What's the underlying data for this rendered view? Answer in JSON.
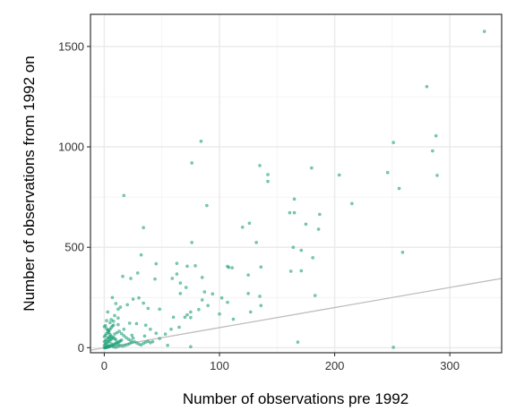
{
  "chart_data": {
    "type": "scatter",
    "xlabel": "Number of observations pre 1992",
    "ylabel": "Number of observations from 1992 on",
    "xlim": [
      -12,
      345
    ],
    "ylim": [
      -25,
      1660
    ],
    "x_ticks": [
      0,
      100,
      200,
      300
    ],
    "y_ticks": [
      0,
      500,
      1000,
      1500
    ],
    "x_minor": [
      50,
      150,
      250
    ],
    "y_minor": [
      250,
      750,
      1250
    ],
    "grid": true,
    "reference_line": {
      "slope": 1,
      "intercept": 0,
      "color": "#bdbdbd"
    },
    "point_color": "#1b9e77",
    "series": [
      {
        "points": [
          [
            330,
            1575
          ],
          [
            280,
            1300
          ],
          [
            288,
            1055
          ],
          [
            251,
            1022
          ],
          [
            285,
            980
          ],
          [
            289,
            858
          ],
          [
            84,
            1028
          ],
          [
            76,
            920
          ],
          [
            135,
            907
          ],
          [
            142,
            862
          ],
          [
            142,
            828
          ],
          [
            180,
            895
          ],
          [
            204,
            860
          ],
          [
            246,
            872
          ],
          [
            256,
            793
          ],
          [
            215,
            718
          ],
          [
            165,
            740
          ],
          [
            161,
            672
          ],
          [
            165,
            672
          ],
          [
            187,
            664
          ],
          [
            175,
            615
          ],
          [
            186,
            590
          ],
          [
            17,
            758
          ],
          [
            89,
            708
          ],
          [
            120,
            600
          ],
          [
            126,
            620
          ],
          [
            132,
            524
          ],
          [
            164,
            500
          ],
          [
            171,
            485
          ],
          [
            181,
            448
          ],
          [
            259,
            475
          ],
          [
            34,
            598
          ],
          [
            76,
            524
          ],
          [
            32,
            462
          ],
          [
            29,
            372
          ],
          [
            45,
            418
          ],
          [
            63,
            420
          ],
          [
            63,
            367
          ],
          [
            72,
            406
          ],
          [
            79,
            408
          ],
          [
            85,
            350
          ],
          [
            107,
            405
          ],
          [
            108,
            400
          ],
          [
            111,
            398
          ],
          [
            136,
            402
          ],
          [
            125,
            362
          ],
          [
            162,
            381
          ],
          [
            171,
            383
          ],
          [
            16,
            355
          ],
          [
            23,
            345
          ],
          [
            44,
            342
          ],
          [
            59,
            345
          ],
          [
            66,
            322
          ],
          [
            71,
            300
          ],
          [
            66,
            270
          ],
          [
            87,
            278
          ],
          [
            102,
            248
          ],
          [
            94,
            268
          ],
          [
            107,
            226
          ],
          [
            125,
            270
          ],
          [
            135,
            256
          ],
          [
            136,
            210
          ],
          [
            127,
            178
          ],
          [
            183,
            260
          ],
          [
            3,
            178
          ],
          [
            7,
            250
          ],
          [
            10,
            220
          ],
          [
            12,
            192
          ],
          [
            14,
            202
          ],
          [
            20,
            214
          ],
          [
            25,
            242
          ],
          [
            30,
            248
          ],
          [
            34,
            222
          ],
          [
            38,
            196
          ],
          [
            48,
            192
          ],
          [
            72,
            164
          ],
          [
            75,
            178
          ],
          [
            82,
            190
          ],
          [
            85,
            238
          ],
          [
            90,
            210
          ],
          [
            100,
            168
          ],
          [
            60,
            152
          ],
          [
            70,
            152
          ],
          [
            75,
            150
          ],
          [
            58,
            92
          ],
          [
            65,
            102
          ],
          [
            53,
            68
          ],
          [
            112,
            142
          ],
          [
            22,
            122
          ],
          [
            28,
            120
          ],
          [
            36,
            112
          ],
          [
            40,
            92
          ],
          [
            45,
            72
          ],
          [
            35,
            58
          ],
          [
            48,
            46
          ],
          [
            24,
            62
          ],
          [
            17,
            92
          ],
          [
            55,
            12
          ],
          [
            75,
            5
          ],
          [
            168,
            28
          ],
          [
            251,
            2
          ],
          [
            4,
            10
          ],
          [
            2,
            135
          ],
          [
            5,
            125
          ],
          [
            8,
            132
          ],
          [
            12,
            115
          ],
          [
            1,
            2
          ],
          [
            2,
            5
          ],
          [
            3,
            8
          ],
          [
            0,
            12
          ],
          [
            1,
            18
          ],
          [
            2,
            22
          ],
          [
            3,
            28
          ],
          [
            4,
            32
          ],
          [
            5,
            38
          ],
          [
            6,
            42
          ],
          [
            7,
            48
          ],
          [
            0,
            0
          ],
          [
            1,
            0
          ],
          [
            2,
            1
          ],
          [
            3,
            3
          ],
          [
            4,
            5
          ],
          [
            5,
            6
          ],
          [
            6,
            9
          ],
          [
            7,
            12
          ],
          [
            8,
            15
          ],
          [
            9,
            18
          ],
          [
            10,
            22
          ],
          [
            11,
            25
          ],
          [
            12,
            28
          ],
          [
            13,
            30
          ],
          [
            14,
            34
          ],
          [
            15,
            38
          ],
          [
            0,
            55
          ],
          [
            1,
            62
          ],
          [
            2,
            70
          ],
          [
            3,
            78
          ],
          [
            4,
            85
          ],
          [
            5,
            92
          ],
          [
            6,
            100
          ],
          [
            7,
            108
          ],
          [
            8,
            112
          ],
          [
            0,
            105
          ],
          [
            1,
            110
          ],
          [
            2,
            95
          ],
          [
            3,
            88
          ],
          [
            4,
            75
          ],
          [
            5,
            65
          ],
          [
            6,
            58
          ],
          [
            8,
            52
          ],
          [
            9,
            45
          ],
          [
            10,
            40
          ],
          [
            12,
            18
          ],
          [
            14,
            10
          ],
          [
            16,
            8
          ],
          [
            18,
            12
          ],
          [
            20,
            15
          ],
          [
            22,
            20
          ],
          [
            24,
            26
          ],
          [
            26,
            30
          ],
          [
            28,
            24
          ],
          [
            30,
            18
          ],
          [
            32,
            14
          ],
          [
            34,
            22
          ],
          [
            36,
            28
          ],
          [
            38,
            32
          ],
          [
            40,
            25
          ],
          [
            42,
            30
          ],
          [
            9,
            68
          ],
          [
            11,
            75
          ],
          [
            13,
            82
          ],
          [
            15,
            70
          ],
          [
            17,
            60
          ],
          [
            19,
            50
          ],
          [
            21,
            42
          ],
          [
            23,
            36
          ],
          [
            25,
            48
          ],
          [
            6,
            140
          ],
          [
            9,
            160
          ],
          [
            12,
            148
          ],
          [
            2,
            40
          ],
          [
            4,
            48
          ],
          [
            6,
            20
          ],
          [
            8,
            4
          ],
          [
            10,
            2
          ],
          [
            12,
            6
          ],
          [
            0,
            30
          ],
          [
            1,
            35
          ],
          [
            3,
            50
          ],
          [
            5,
            55
          ]
        ]
      }
    ]
  }
}
